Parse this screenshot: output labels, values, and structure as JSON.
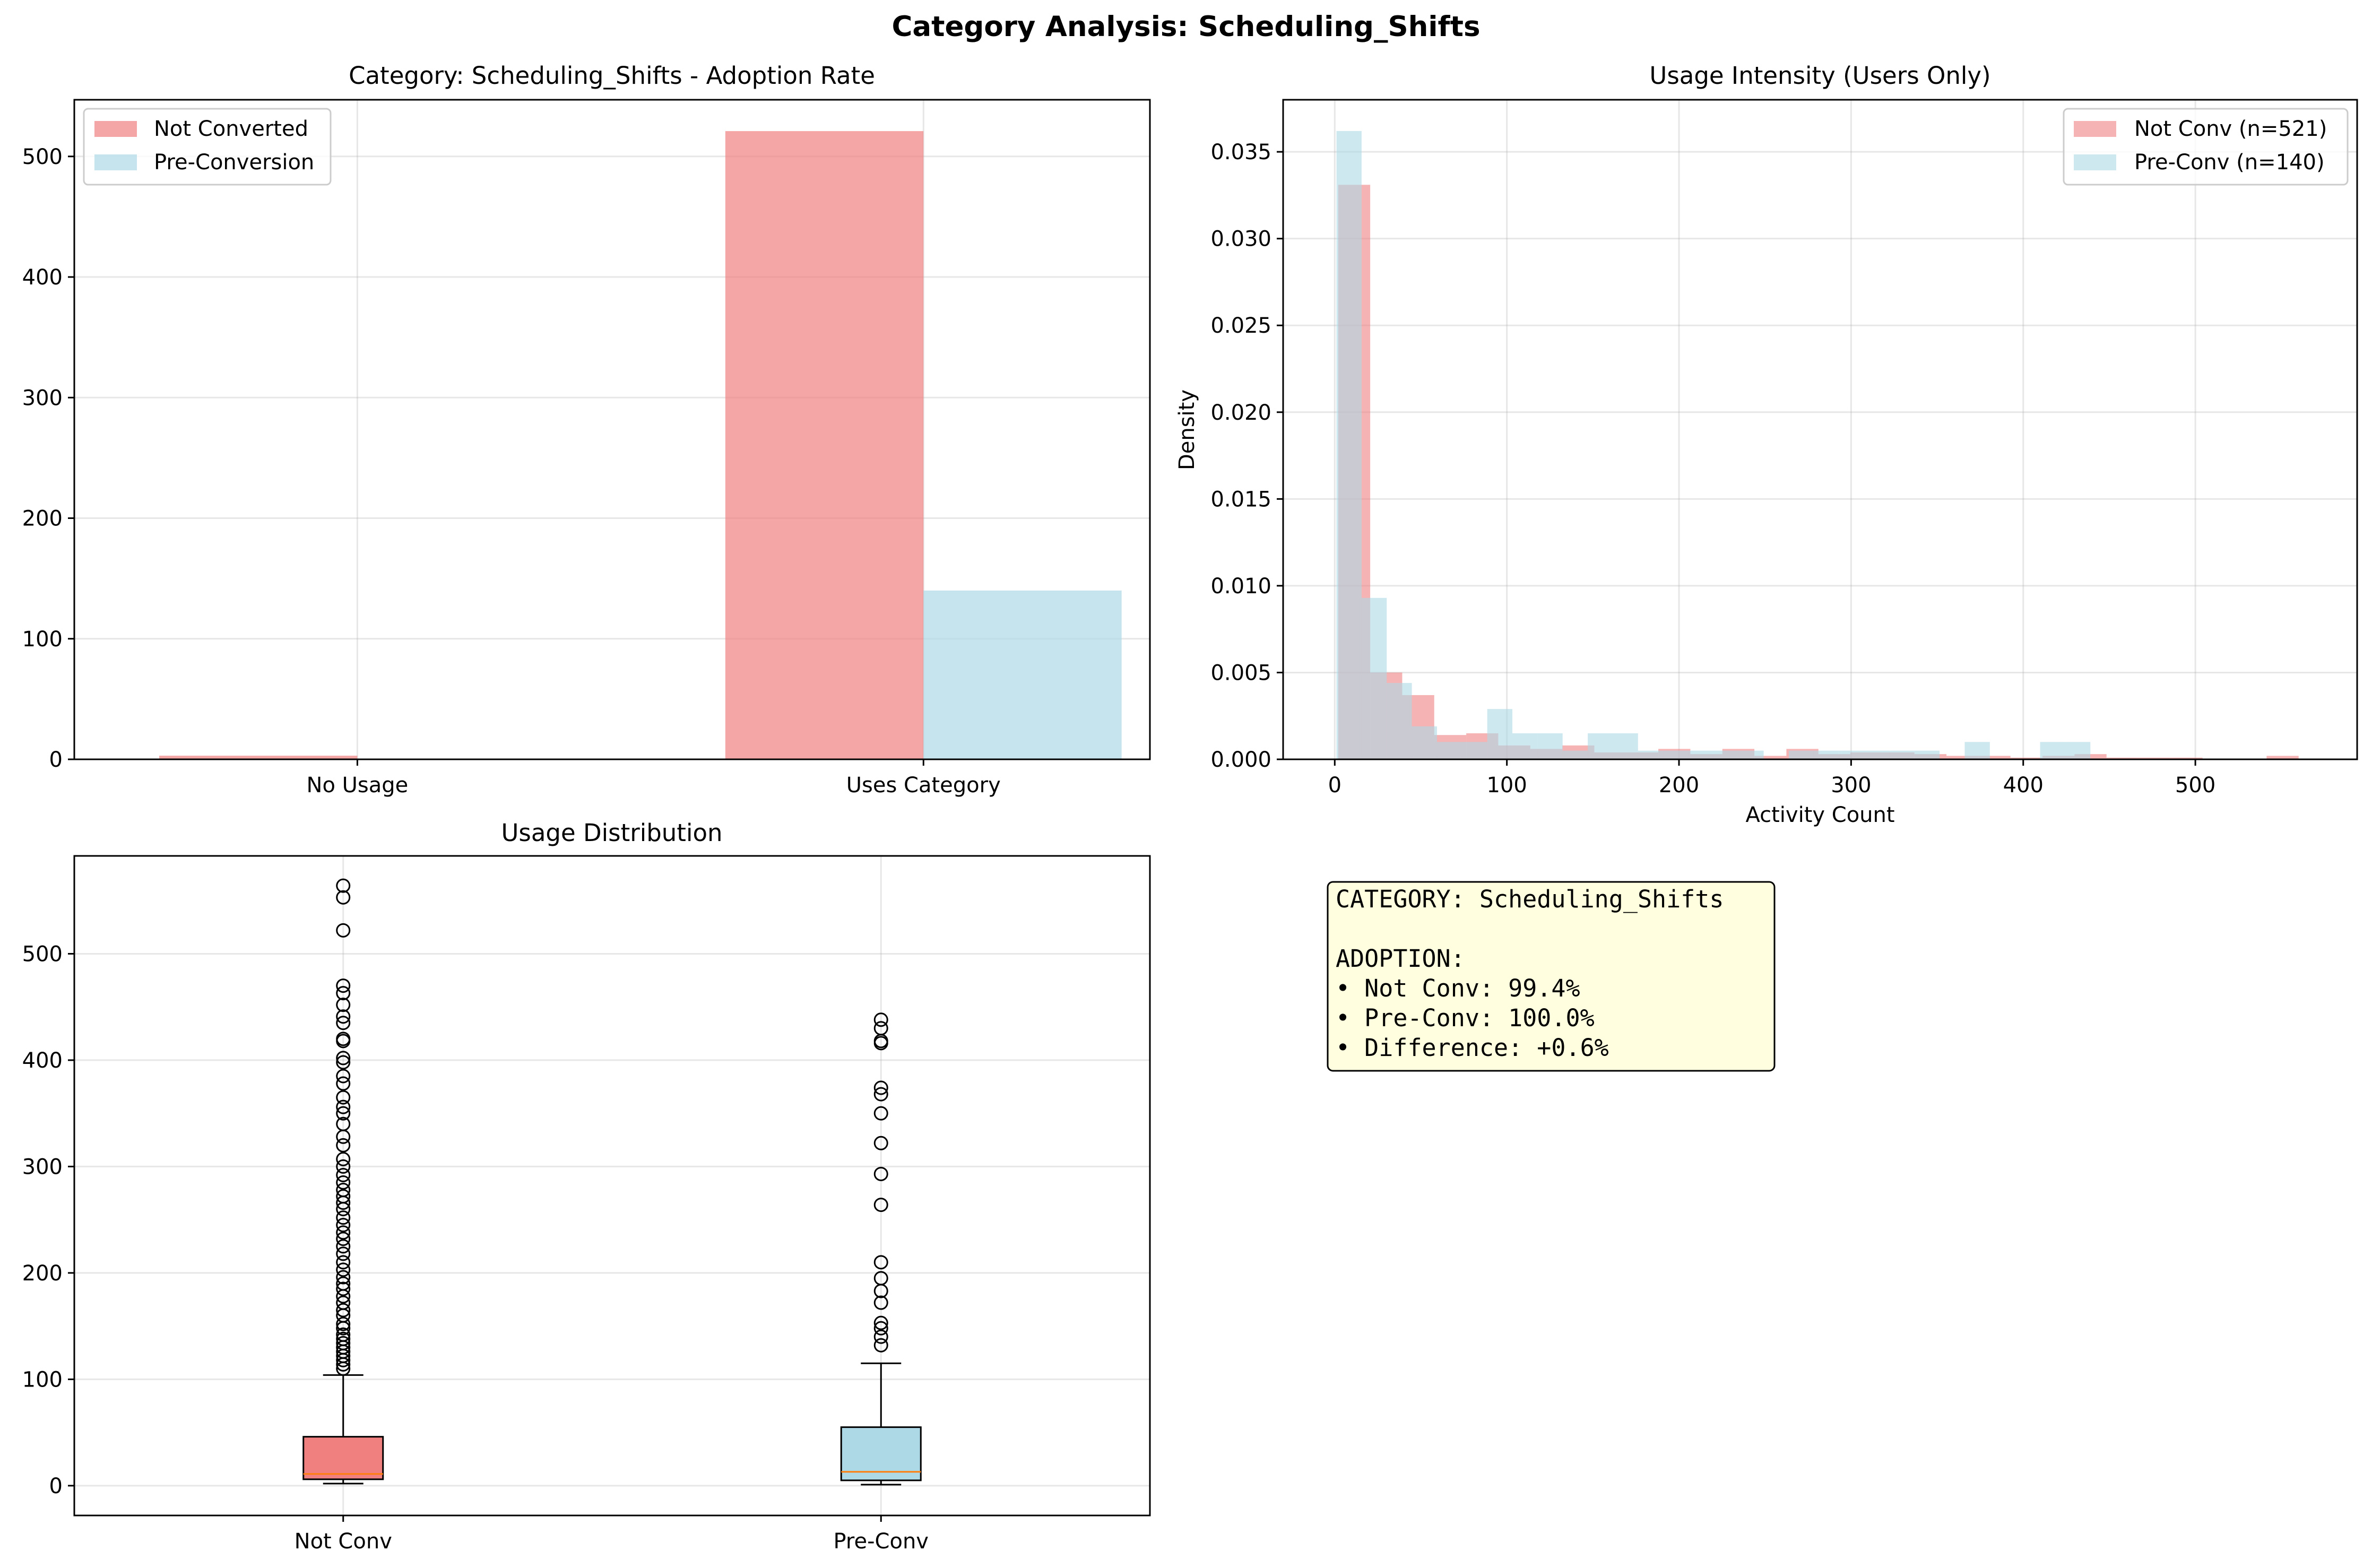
{
  "figure": {
    "suptitle": "Category Analysis: Scheduling_Shifts"
  },
  "chart_data": [
    {
      "type": "bar",
      "title": "Category: Scheduling_Shifts - Adoption Rate",
      "categories": [
        "No Usage",
        "Uses Category"
      ],
      "series": [
        {
          "name": "Not Converted",
          "values": [
            3,
            521
          ],
          "color": "#f08080"
        },
        {
          "name": "Pre-Conversion",
          "values": [
            0,
            140
          ],
          "color": "#add8e6"
        }
      ],
      "xlabel": "",
      "ylabel": "",
      "ylim": [
        0,
        547
      ],
      "yticks": [
        0,
        100,
        200,
        300,
        400,
        500
      ],
      "grid": true,
      "legend": "upper-left"
    },
    {
      "type": "histogram",
      "title": "Usage Intensity (Users Only)",
      "xlabel": "Activity Count",
      "ylabel": "Density",
      "xlim": [
        -30,
        594
      ],
      "ylim": [
        0,
        0.038
      ],
      "xticks": [
        0,
        100,
        200,
        300,
        400,
        500
      ],
      "yticks": [
        0,
        0.005,
        0.01,
        0.015,
        0.02,
        0.025,
        0.03,
        0.035
      ],
      "ytick_labels": [
        "0.000",
        "0.005",
        "0.010",
        "0.015",
        "0.020",
        "0.025",
        "0.030",
        "0.035"
      ],
      "grid": true,
      "legend": "upper-right",
      "series": [
        {
          "name": "Not Conv (n=521)",
          "color": "#f08080",
          "bin_start": 2,
          "bin_width": 18.6,
          "values": [
            0.0331,
            0.005,
            0.0037,
            0.0014,
            0.0015,
            0.0008,
            0.0006,
            0.0008,
            0.0004,
            0.0004,
            0.0006,
            0.0003,
            0.0006,
            0.0002,
            0.0006,
            0.0003,
            0.0004,
            0.0004,
            0.0003,
            0.0002,
            0.0002,
            0.0001,
            0.0002,
            0.0003,
            0.0001,
            0.0001,
            0.0001,
            0.0,
            0.0,
            0.0002
          ]
        },
        {
          "name": "Pre-Conv (n=140)",
          "color": "#add8e6",
          "bin_start": 1,
          "bin_width": 14.6,
          "values": [
            0.0362,
            0.0093,
            0.0044,
            0.0019,
            0.001,
            0.001,
            0.0029,
            0.0015,
            0.0015,
            0.0005,
            0.0015,
            0.0015,
            0.0005,
            0.0005,
            0.0005,
            0.0005,
            0.0005,
            0.0,
            0.0005,
            0.0005,
            0.0005,
            0.0005,
            0.0005,
            0.0005,
            0.0,
            0.001,
            0.0,
            0.0,
            0.001,
            0.001
          ]
        }
      ]
    },
    {
      "type": "box",
      "title": "Usage Distribution",
      "categories": [
        "Not Conv",
        "Pre-Conv"
      ],
      "ylim": [
        -28,
        592
      ],
      "yticks": [
        0,
        100,
        200,
        300,
        400,
        500
      ],
      "grid": true,
      "boxes": [
        {
          "name": "Not Conv",
          "color": "#f08080",
          "whisker_low": 2,
          "q1": 6,
          "median": 11,
          "q3": 46,
          "whisker_high": 104,
          "outliers": [
            110,
            114,
            118,
            122,
            126,
            130,
            134,
            138,
            142,
            148,
            152,
            160,
            165,
            172,
            178,
            185,
            190,
            196,
            203,
            210,
            218,
            225,
            232,
            238,
            245,
            252,
            260,
            266,
            272,
            278,
            285,
            292,
            300,
            307,
            320,
            328,
            340,
            350,
            356,
            365,
            378,
            385,
            398,
            402,
            418,
            420,
            435,
            441,
            452,
            463,
            470,
            522,
            553,
            564
          ]
        },
        {
          "name": "Pre-Conv",
          "color": "#add8e6",
          "whisker_low": 1,
          "q1": 5,
          "median": 13,
          "q3": 55,
          "whisker_high": 115,
          "outliers": [
            132,
            140,
            148,
            153,
            172,
            183,
            195,
            210,
            264,
            293,
            322,
            350,
            368,
            374,
            416,
            418,
            430,
            438
          ]
        }
      ]
    }
  ],
  "textbox": {
    "lines": [
      "CATEGORY: Scheduling_Shifts",
      "",
      "ADOPTION:",
      "• Not Conv: 99.4%",
      "• Pre-Conv: 100.0%",
      "• Difference: +0.6%"
    ]
  }
}
